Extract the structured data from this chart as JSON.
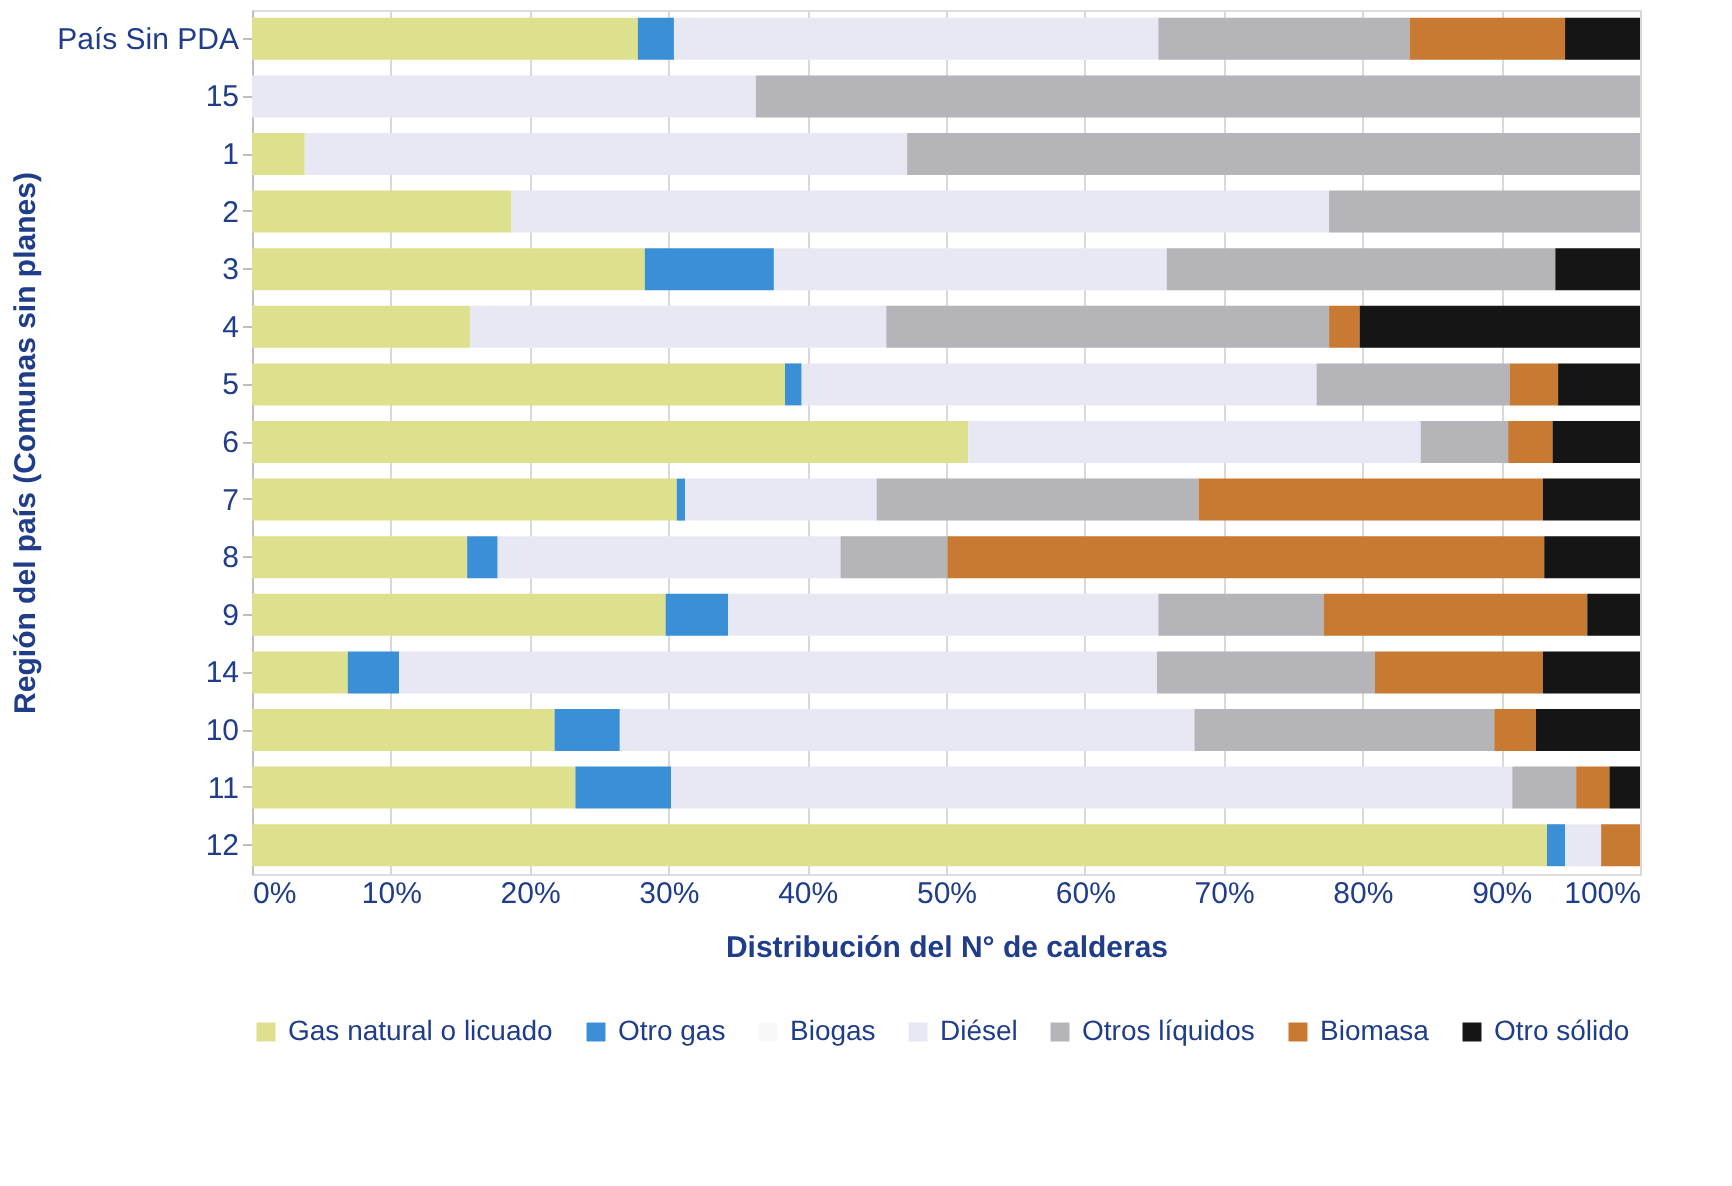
{
  "chart_data": {
    "type": "bar",
    "orientation": "horizontal",
    "stacked": true,
    "xlabel": "Distribución del N° de calderas",
    "ylabel": "Región del país  (Comunas sin planes)",
    "categories": [
      "País Sin PDA",
      "15",
      "1",
      "2",
      "3",
      "4",
      "5",
      "6",
      "7",
      "8",
      "9",
      "14",
      "10",
      "11",
      "12"
    ],
    "series": [
      {
        "name": "Gas natural o licuado",
        "color": "#dde08c",
        "values": [
          27.8,
          0,
          3.8,
          18.7,
          28.3,
          15.7,
          38.4,
          51.6,
          30.6,
          15.5,
          29.8,
          6.9,
          21.8,
          23.3,
          93.3
        ]
      },
      {
        "name": "Otro gas",
        "color": "#3a8fd6",
        "values": [
          2.6,
          0,
          0,
          0,
          9.3,
          0,
          1.2,
          0,
          0.6,
          2.2,
          4.5,
          3.7,
          4.7,
          6.9,
          1.3
        ]
      },
      {
        "name": "Biogas",
        "color": "#f8f8fb",
        "values": [
          0,
          0,
          0,
          0,
          0,
          0,
          0,
          0,
          0,
          0,
          0,
          0,
          0,
          0,
          0
        ]
      },
      {
        "name": "Diésel",
        "color": "#e8e8f4",
        "values": [
          34.9,
          36.3,
          43.4,
          58.9,
          28.3,
          30.0,
          37.1,
          32.6,
          13.8,
          24.7,
          31.0,
          54.6,
          41.4,
          60.6,
          2.6
        ]
      },
      {
        "name": "Otros líquidos",
        "color": "#b4b4b9",
        "values": [
          18.1,
          63.7,
          52.8,
          22.4,
          28.0,
          31.9,
          13.9,
          6.3,
          23.2,
          7.7,
          11.9,
          15.7,
          21.6,
          4.6,
          0
        ]
      },
      {
        "name": "Biomasa",
        "color": "#c87a32",
        "values": [
          11.2,
          0,
          0,
          0,
          0,
          2.2,
          3.5,
          3.2,
          24.8,
          43.0,
          19.0,
          12.1,
          3.0,
          2.4,
          2.8
        ]
      },
      {
        "name": "Otro sólido",
        "color": "#151515",
        "values": [
          5.4,
          0,
          0,
          0,
          6.1,
          20.2,
          5.9,
          6.3,
          7.0,
          6.9,
          3.8,
          7.0,
          7.5,
          2.2,
          0
        ]
      }
    ],
    "xlim": [
      0,
      100
    ],
    "xticks": [
      {
        "value": 0,
        "label": "0%"
      },
      {
        "value": 10,
        "label": "10%"
      },
      {
        "value": 20,
        "label": "20%"
      },
      {
        "value": 30,
        "label": "30%"
      },
      {
        "value": 40,
        "label": "40%"
      },
      {
        "value": 50,
        "label": "50%"
      },
      {
        "value": 60,
        "label": "60%"
      },
      {
        "value": 70,
        "label": "70%"
      },
      {
        "value": 80,
        "label": "80%"
      },
      {
        "value": 90,
        "label": "90%"
      },
      {
        "value": 100,
        "label": "100%"
      }
    ],
    "grid": "x",
    "legend": "bottom"
  }
}
